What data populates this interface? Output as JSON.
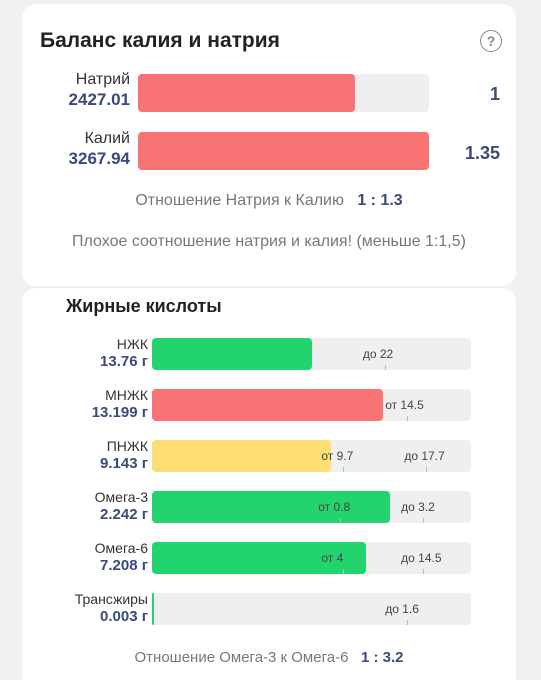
{
  "balance": {
    "title": "Баланс калия и натрия",
    "help_icon": "question-circle-icon",
    "rows": [
      {
        "name": "Натрий",
        "value": "2427.01",
        "ratio": "1",
        "fill": 0.745,
        "color": "#f87474"
      },
      {
        "name": "Калий",
        "value": "3267.94",
        "ratio": "1.35",
        "fill": 1.0,
        "color": "#f87474"
      }
    ],
    "ratio_label": "Отношение Натрия к Калию",
    "ratio_value": "1 : 1.3",
    "warning": "Плохое соотношение натрия и калия! (меньше 1:1,5)"
  },
  "fats": {
    "title": "Жирные кислоты",
    "rows": [
      {
        "name": "НЖК",
        "value": "13.76 г",
        "fill": 0.5,
        "color": "#22d36e",
        "markers": [
          {
            "text": "до 22",
            "pos": 0.73
          }
        ]
      },
      {
        "name": "МНЖК",
        "value": "13.199 г",
        "fill": 0.725,
        "color": "#f87474",
        "markers": [
          {
            "text": "от 14.5",
            "pos": 0.8
          }
        ]
      },
      {
        "name": "ПНЖК",
        "value": "9.143 г",
        "fill": 0.56,
        "color": "#fedd72",
        "markers": [
          {
            "text": "от 9.7",
            "pos": 0.6
          },
          {
            "text": "до 17.7",
            "pos": 0.86
          }
        ]
      },
      {
        "name": "Омега-3",
        "value": "2.242 г",
        "fill": 0.745,
        "color": "#22d36e",
        "markers": [
          {
            "text": "от 0.8",
            "pos": 0.59
          },
          {
            "text": "до 3.2",
            "pos": 0.85
          }
        ]
      },
      {
        "name": "Омега-6",
        "value": "7.208 г",
        "fill": 0.67,
        "color": "#22d36e",
        "markers": [
          {
            "text": "от 4",
            "pos": 0.6
          },
          {
            "text": "до 14.5",
            "pos": 0.85
          }
        ]
      },
      {
        "name": "Трансжиры",
        "value": "0.003 г",
        "fill": 0.006,
        "color": "#22d36e",
        "markers": [
          {
            "text": "до 1.6",
            "pos": 0.8
          }
        ]
      }
    ],
    "ratio_label": "Отношение Омега-3 к Омега-6",
    "ratio_value": "1 : 3.2"
  }
}
